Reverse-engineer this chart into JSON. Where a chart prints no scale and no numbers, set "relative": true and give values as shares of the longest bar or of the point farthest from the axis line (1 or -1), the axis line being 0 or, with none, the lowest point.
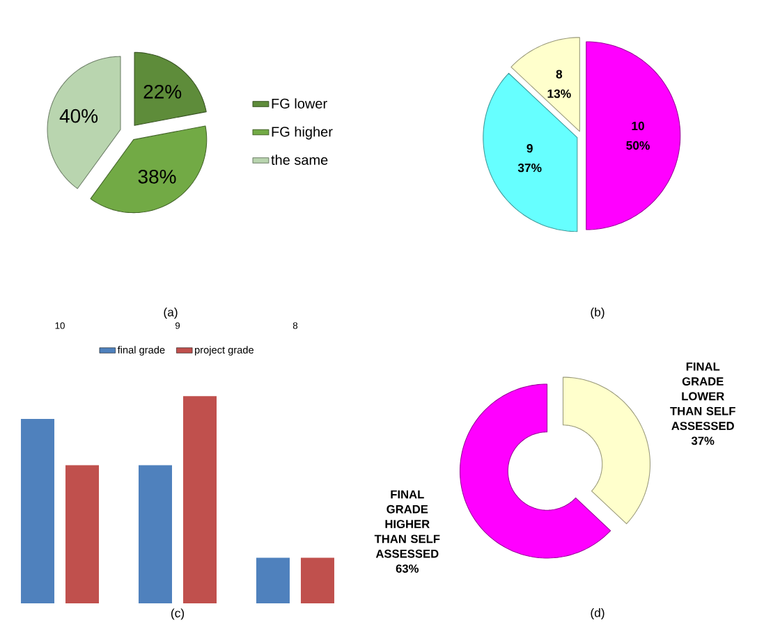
{
  "chart_data": [
    {
      "type": "pie",
      "categories": [
        "FG lower",
        "FG higher",
        "the same"
      ],
      "values": [
        22,
        38,
        40
      ],
      "value_labels": [
        "22%",
        "38%",
        "40%"
      ],
      "colors": [
        "#5e8c3a",
        "#72aa45",
        "#b9d5af"
      ],
      "legend": "right",
      "annotations": [
        "(a)"
      ]
    },
    {
      "type": "pie",
      "categories": [
        "10",
        "9",
        "8"
      ],
      "values": [
        50,
        37,
        13
      ],
      "value_labels": [
        "50%",
        "37%",
        "13%"
      ],
      "colors": [
        "#ff00ff",
        "#66ffff",
        "#ffffcc"
      ],
      "annotations": [
        "(b)"
      ]
    },
    {
      "type": "bar",
      "relative": true,
      "categories": [
        "10",
        "9",
        "8"
      ],
      "series": [
        {
          "name": "final grade",
          "color": "#4f81bd",
          "values": [
            0.89,
            0.667,
            0.22
          ]
        },
        {
          "name": "project grade",
          "color": "#c0504d",
          "values": [
            0.667,
            1,
            0.22
          ]
        }
      ],
      "legend": "top",
      "annotations": [
        "(c)"
      ]
    },
    {
      "type": "donut",
      "categories": [
        "FINAL GRADE LOWER THAN SELF ASSESSED",
        "FINAL GRADE HIGHER THAN SELF ASSESSED"
      ],
      "values": [
        37,
        63
      ],
      "value_labels": [
        "37%",
        "63%"
      ],
      "colors": [
        "#ffffcc",
        "#ff00ff"
      ],
      "annotations": [
        "(d)"
      ]
    }
  ]
}
